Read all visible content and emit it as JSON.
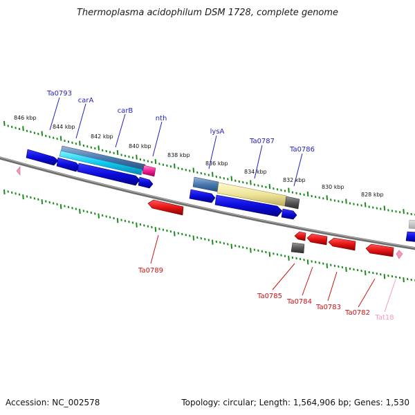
{
  "title": "Thermoplasma acidophilum DSM 1728, complete genome",
  "footer": {
    "accession": "Accession: NC_002578",
    "summary": "Topology: circular; Length: 1,564,906 bp; Genes: 1,530"
  },
  "colors": {
    "forward_label": "#1f1fbf",
    "reverse_label": "#cc1111",
    "rna_label": "#f29ac0",
    "backbone": "#7a7a7a",
    "ticks": "#1a8a1a",
    "forward_gene": "#0a0adc",
    "reverse_gene": "#e01010",
    "pseudo_gene": "#555555"
  },
  "scale_labels": [
    "846 kbp",
    "844 kbp",
    "842 kbp",
    "840 kbp",
    "838 kbp",
    "836 kbp",
    "834 kbp",
    "832 kbp",
    "830 kbp",
    "828 kbp"
  ],
  "gene_labels": {
    "forward": [
      "Ta0793",
      "carA",
      "carB",
      "nth",
      "lysA",
      "Ta0787",
      "Ta0786"
    ],
    "reverse": [
      "Ta0789",
      "Ta0785",
      "Ta0784",
      "Ta0783",
      "Ta0782"
    ],
    "rna": [
      "Tat18"
    ]
  }
}
